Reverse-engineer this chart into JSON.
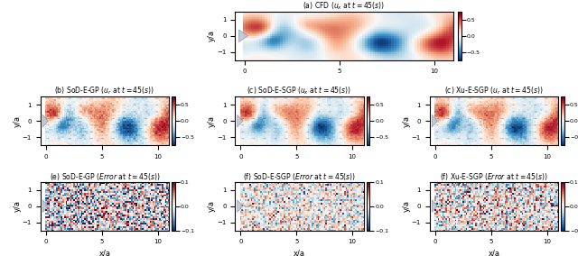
{
  "title_a": "(a) CFD ($u_x$ at $t = 45(s)$)",
  "title_b": "(b) SoD-E-GP ($u_r$ at $t = 45(s)$)",
  "title_c": "(c) SoD-E-SGP ($u_x$ at $t = 45(s)$)",
  "title_d": "(c) Xu-E-SGP ($u_r$ at $t = 45(s)$)",
  "title_e": "(e) SoD-E-GP ($Error$ at $t = 45(s)$)",
  "title_f": "(f) SoD-E-SGP ($Error$ at $t = 45(s)$)",
  "title_g": "(f) Xu-E-SGP ($Error$ at $t = 45(s)$)",
  "cmap_flow": "RdBu_r",
  "cmap_error": "RdBu_r",
  "vmin_flow": -0.75,
  "vmax_flow": 0.75,
  "vmin_error": -0.1,
  "vmax_error": 0.1,
  "cb_ticks_flow": [
    -0.5,
    0,
    0.5
  ],
  "cb_ticks_error": [
    -0.1,
    0,
    0.1
  ],
  "xlim": [
    -0.5,
    11
  ],
  "ylim": [
    -1.5,
    1.5
  ],
  "xticks": [
    0,
    5,
    10
  ],
  "yticks": [
    -1,
    0,
    1
  ],
  "xlabel": "x/a",
  "ylabel": "y/a",
  "nx": 80,
  "ny": 30,
  "seed": 42
}
